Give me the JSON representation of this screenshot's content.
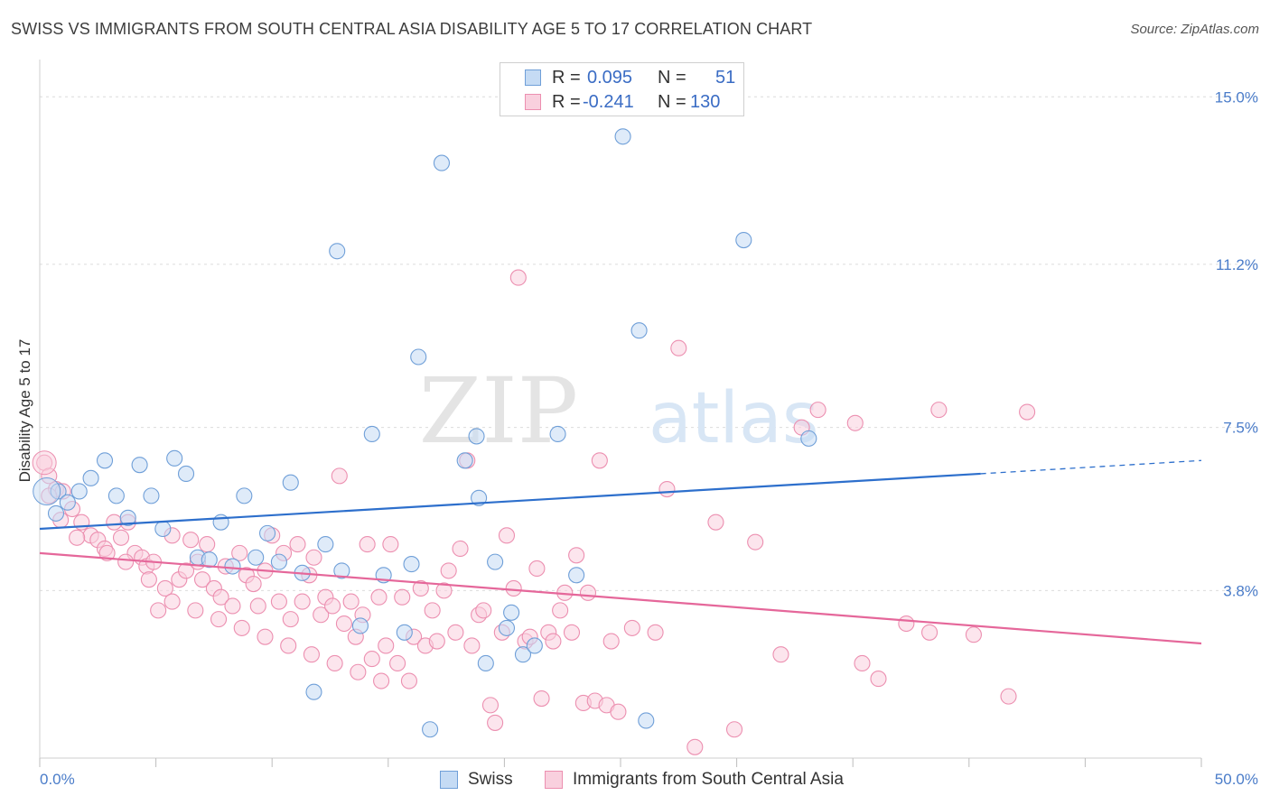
{
  "header": {
    "title": "SWISS VS IMMIGRANTS FROM SOUTH CENTRAL ASIA DISABILITY AGE 5 TO 17 CORRELATION CHART",
    "source": "Source: ZipAtlas.com"
  },
  "watermark": {
    "zip": "ZIP",
    "atlas": "atlas"
  },
  "legend": {
    "rows": [
      {
        "r_label": "R =",
        "r_value": "0.095",
        "n_label": "N =",
        "n_value": "51",
        "color": "#a9c8ef"
      },
      {
        "r_label": "R =",
        "r_value": "-0.241",
        "n_label": "N =",
        "n_value": "130",
        "color": "#f7b8cc"
      }
    ]
  },
  "bottom_legend": {
    "swiss": "Swiss",
    "immigrants": "Immigrants from South Central Asia"
  },
  "chart_data": {
    "type": "scatter",
    "title": "SWISS VS IMMIGRANTS FROM SOUTH CENTRAL ASIA DISABILITY AGE 5 TO 17 CORRELATION CHART",
    "ylabel": "Disability Age 5 to 17",
    "xlabel": "",
    "xlim": [
      0,
      50
    ],
    "ylim": [
      0,
      15.6
    ],
    "x_ticks": {
      "labels": [
        "0.0%",
        "50.0%"
      ],
      "values": [
        0,
        50
      ]
    },
    "y_ticks": {
      "labels": [
        "3.8%",
        "7.5%",
        "11.2%",
        "15.0%"
      ],
      "values": [
        3.8,
        7.5,
        11.2,
        15.0
      ]
    },
    "grid": true,
    "legend_position": "top-center",
    "colors": {
      "swiss": "#6f9fd8",
      "swiss_fill": "#c5dbf4",
      "swiss_line": "#2d6fcc",
      "imm": "#ec8fb0",
      "imm_fill": "#f9d0de",
      "imm_line": "#e5679a"
    },
    "series": [
      {
        "name": "Swiss",
        "trend": {
          "x": [
            0,
            40.5
          ],
          "y": [
            5.2,
            6.45
          ],
          "dashed_to": [
            50,
            6.75
          ]
        },
        "points": [
          [
            0.8,
            6.05
          ],
          [
            0.7,
            5.55
          ],
          [
            1.2,
            5.8
          ],
          [
            1.7,
            6.05
          ],
          [
            2.2,
            6.35
          ],
          [
            2.8,
            6.75
          ],
          [
            3.3,
            5.95
          ],
          [
            3.8,
            5.45
          ],
          [
            4.3,
            6.65
          ],
          [
            4.8,
            5.95
          ],
          [
            5.3,
            5.2
          ],
          [
            5.8,
            6.8
          ],
          [
            6.3,
            6.45
          ],
          [
            6.8,
            4.55
          ],
          [
            7.3,
            4.5
          ],
          [
            7.8,
            5.35
          ],
          [
            8.3,
            4.35
          ],
          [
            8.8,
            5.95
          ],
          [
            9.3,
            4.55
          ],
          [
            9.8,
            5.1
          ],
          [
            10.3,
            4.45
          ],
          [
            10.8,
            6.25
          ],
          [
            11.3,
            4.2
          ],
          [
            11.8,
            1.5
          ],
          [
            12.3,
            4.85
          ],
          [
            12.8,
            11.5
          ],
          [
            13.0,
            4.25
          ],
          [
            13.8,
            3.0
          ],
          [
            14.3,
            7.35
          ],
          [
            14.8,
            4.15
          ],
          [
            15.7,
            2.85
          ],
          [
            16.0,
            4.4
          ],
          [
            16.3,
            9.1
          ],
          [
            16.8,
            0.65
          ],
          [
            17.3,
            13.5
          ],
          [
            18.3,
            6.75
          ],
          [
            18.8,
            7.3
          ],
          [
            18.9,
            5.9
          ],
          [
            19.2,
            2.15
          ],
          [
            19.6,
            4.45
          ],
          [
            20.1,
            2.95
          ],
          [
            20.3,
            3.3
          ],
          [
            20.8,
            2.35
          ],
          [
            21.3,
            2.55
          ],
          [
            22.3,
            7.35
          ],
          [
            23.1,
            4.15
          ],
          [
            25.1,
            14.1
          ],
          [
            25.8,
            9.7
          ],
          [
            26.1,
            0.85
          ],
          [
            30.3,
            11.75
          ],
          [
            33.1,
            7.25
          ]
        ]
      },
      {
        "name": "Immigrants from South Central Asia",
        "trend": {
          "x": [
            0,
            50
          ],
          "y": [
            4.65,
            2.6
          ]
        },
        "points": [
          [
            0.2,
            6.7
          ],
          [
            0.4,
            6.4
          ],
          [
            0.7,
            6.1
          ],
          [
            1.0,
            6.05
          ],
          [
            1.4,
            5.65
          ],
          [
            1.8,
            5.35
          ],
          [
            2.2,
            5.05
          ],
          [
            2.5,
            4.95
          ],
          [
            2.8,
            4.75
          ],
          [
            3.2,
            5.35
          ],
          [
            3.5,
            5.0
          ],
          [
            3.8,
            5.35
          ],
          [
            4.1,
            4.65
          ],
          [
            4.4,
            4.55
          ],
          [
            4.6,
            4.35
          ],
          [
            4.9,
            4.45
          ],
          [
            5.1,
            3.35
          ],
          [
            5.4,
            3.85
          ],
          [
            5.7,
            5.05
          ],
          [
            6.0,
            4.05
          ],
          [
            6.3,
            4.25
          ],
          [
            6.5,
            4.95
          ],
          [
            6.8,
            4.45
          ],
          [
            7.0,
            4.05
          ],
          [
            7.2,
            4.85
          ],
          [
            7.5,
            3.85
          ],
          [
            7.8,
            3.65
          ],
          [
            8.0,
            4.35
          ],
          [
            8.3,
            3.45
          ],
          [
            8.6,
            4.65
          ],
          [
            8.9,
            4.15
          ],
          [
            9.2,
            3.95
          ],
          [
            9.4,
            3.45
          ],
          [
            9.7,
            4.25
          ],
          [
            10.0,
            5.05
          ],
          [
            10.3,
            3.55
          ],
          [
            10.5,
            4.65
          ],
          [
            10.8,
            3.15
          ],
          [
            11.1,
            4.85
          ],
          [
            11.3,
            3.55
          ],
          [
            11.6,
            4.15
          ],
          [
            11.8,
            4.55
          ],
          [
            12.1,
            3.25
          ],
          [
            12.3,
            3.65
          ],
          [
            12.6,
            3.45
          ],
          [
            12.9,
            6.4
          ],
          [
            13.1,
            3.05
          ],
          [
            13.4,
            3.55
          ],
          [
            13.6,
            2.75
          ],
          [
            13.9,
            3.25
          ],
          [
            14.1,
            4.85
          ],
          [
            14.3,
            2.25
          ],
          [
            14.6,
            3.65
          ],
          [
            14.9,
            2.55
          ],
          [
            15.1,
            4.85
          ],
          [
            15.4,
            2.15
          ],
          [
            15.6,
            3.65
          ],
          [
            15.9,
            1.75
          ],
          [
            16.1,
            2.75
          ],
          [
            16.4,
            3.85
          ],
          [
            16.6,
            2.55
          ],
          [
            16.9,
            3.35
          ],
          [
            17.1,
            2.65
          ],
          [
            17.4,
            3.8
          ],
          [
            17.6,
            4.25
          ],
          [
            17.9,
            2.85
          ],
          [
            18.1,
            4.75
          ],
          [
            18.4,
            6.75
          ],
          [
            18.6,
            2.55
          ],
          [
            18.9,
            3.25
          ],
          [
            19.1,
            3.35
          ],
          [
            19.4,
            1.2
          ],
          [
            19.6,
            0.8
          ],
          [
            19.9,
            2.85
          ],
          [
            20.1,
            5.05
          ],
          [
            20.4,
            3.85
          ],
          [
            20.6,
            10.9
          ],
          [
            20.9,
            2.65
          ],
          [
            21.1,
            2.75
          ],
          [
            21.4,
            4.3
          ],
          [
            21.6,
            1.35
          ],
          [
            21.9,
            2.85
          ],
          [
            22.1,
            2.65
          ],
          [
            22.4,
            3.35
          ],
          [
            22.6,
            3.75
          ],
          [
            22.9,
            2.85
          ],
          [
            23.1,
            4.6
          ],
          [
            23.4,
            1.25
          ],
          [
            23.6,
            3.75
          ],
          [
            23.9,
            1.3
          ],
          [
            24.1,
            6.75
          ],
          [
            24.4,
            1.2
          ],
          [
            24.6,
            2.65
          ],
          [
            24.9,
            1.05
          ],
          [
            25.5,
            2.95
          ],
          [
            26.5,
            2.85
          ],
          [
            27.0,
            6.1
          ],
          [
            27.5,
            9.3
          ],
          [
            28.2,
            0.25
          ],
          [
            29.1,
            5.35
          ],
          [
            29.9,
            0.65
          ],
          [
            30.8,
            4.9
          ],
          [
            31.9,
            2.35
          ],
          [
            32.8,
            7.5
          ],
          [
            33.5,
            7.9
          ],
          [
            35.1,
            7.6
          ],
          [
            35.4,
            2.15
          ],
          [
            36.1,
            1.8
          ],
          [
            37.3,
            3.05
          ],
          [
            38.3,
            2.85
          ],
          [
            38.7,
            7.9
          ],
          [
            40.2,
            2.8
          ],
          [
            41.7,
            1.4
          ],
          [
            42.5,
            7.85
          ],
          [
            0.4,
            5.95
          ],
          [
            0.9,
            5.4
          ],
          [
            1.6,
            5.0
          ],
          [
            2.9,
            4.65
          ],
          [
            3.7,
            4.45
          ],
          [
            4.7,
            4.05
          ],
          [
            5.7,
            3.55
          ],
          [
            6.7,
            3.35
          ],
          [
            7.7,
            3.15
          ],
          [
            8.7,
            2.95
          ],
          [
            9.7,
            2.75
          ],
          [
            10.7,
            2.55
          ],
          [
            11.7,
            2.35
          ],
          [
            12.7,
            2.15
          ],
          [
            13.7,
            1.95
          ],
          [
            14.7,
            1.75
          ]
        ]
      }
    ]
  }
}
